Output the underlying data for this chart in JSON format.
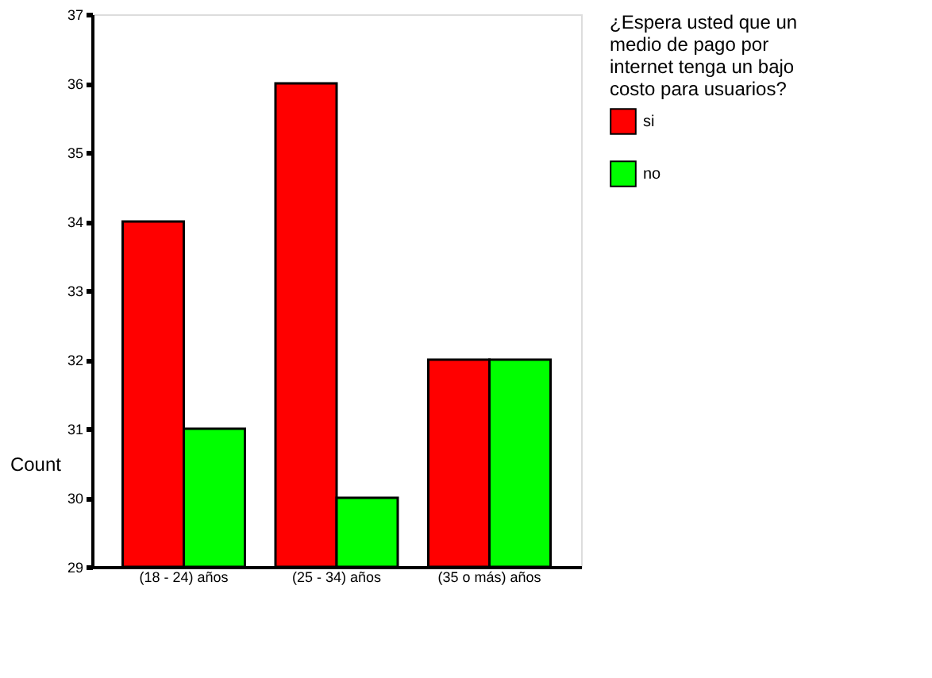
{
  "chart_data": {
    "type": "bar",
    "categories": [
      "(18 - 24) años",
      "(25 - 34) años",
      "(35 o más) años"
    ],
    "series": [
      {
        "name": "si",
        "color": "#ff0000",
        "values": [
          34,
          36,
          32
        ]
      },
      {
        "name": "no",
        "color": "#00ff00",
        "values": [
          31,
          30,
          32
        ]
      }
    ],
    "ylabel": "Count",
    "legend_title": "¿Espera usted que un medio de pago por internet tenga un bajo costo para usuarios?",
    "ylim": [
      29,
      37
    ],
    "yticks": [
      29,
      30,
      31,
      32,
      33,
      34,
      35,
      36,
      37
    ],
    "grid": false,
    "legend": "right"
  }
}
